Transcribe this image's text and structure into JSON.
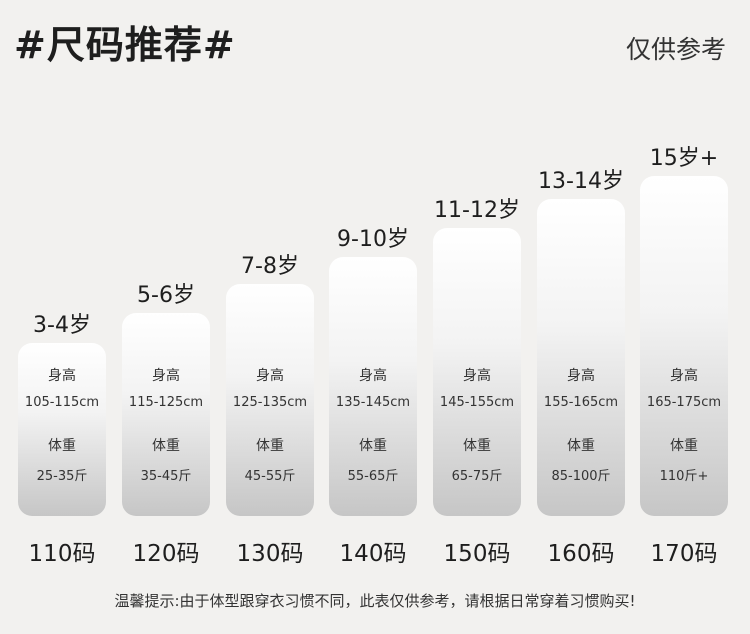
{
  "title": "#尺码推荐#",
  "note": "仅供参考",
  "height_label": "身高",
  "weight_label": "体重",
  "sizes": [
    {
      "age": "3-4岁",
      "height": "105-115cm",
      "weight": "25-35斤",
      "size": "110码"
    },
    {
      "age": "5-6岁",
      "height": "115-125cm",
      "weight": "35-45斤",
      "size": "120码"
    },
    {
      "age": "7-8岁",
      "height": "125-135cm",
      "weight": "45-55斤",
      "size": "130码"
    },
    {
      "age": "9-10岁",
      "height": "135-145cm",
      "weight": "55-65斤",
      "size": "140码"
    },
    {
      "age": "11-12岁",
      "height": "145-155cm",
      "weight": "65-75斤",
      "size": "150码"
    },
    {
      "age": "13-14岁",
      "height": "155-165cm",
      "weight": "85-100斤",
      "size": "160码"
    },
    {
      "age": "15岁+",
      "height": "165-175cm",
      "weight": "110斤+",
      "size": "170码"
    }
  ],
  "tip": "温馨提示:由于体型跟穿衣习惯不同，此表仅供参考，请根据日常穿着习惯购买!"
}
